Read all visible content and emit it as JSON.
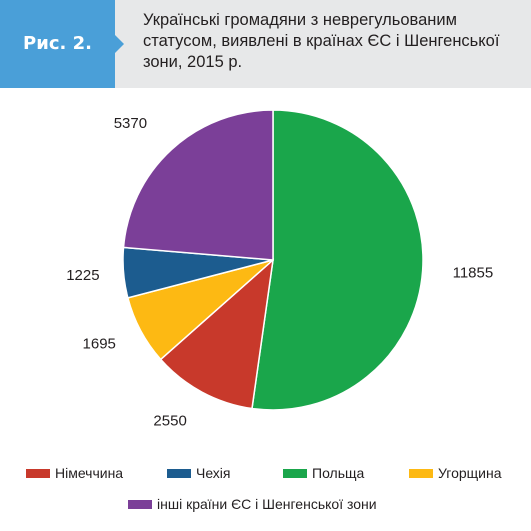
{
  "figure": {
    "label": "Рис. 2.",
    "title": "Українські громадяни з неврегульованим статусом, виявлені в країнах ЄС і Шенгенської зони, 2015 р."
  },
  "chart_data": {
    "type": "pie",
    "title": "Українські громадяни з неврегульованим статусом, виявлені в країнах ЄС і Шенгенської зони, 2015 р.",
    "slices": [
      {
        "name": "Польща",
        "value": 11855,
        "label": "11855",
        "color": "#1aa64b"
      },
      {
        "name": "Німеччина",
        "value": 2550,
        "label": "2550",
        "color": "#c8392b"
      },
      {
        "name": "Угорщина",
        "value": 1695,
        "label": "1695",
        "color": "#fdb913"
      },
      {
        "name": "Чехія",
        "value": 1225,
        "label": "1225",
        "color": "#1c5c8f"
      },
      {
        "name": "інші країни ЄС і Шенгенської зони",
        "value": 5370,
        "label": "5370",
        "color": "#7b3f98"
      }
    ],
    "legend_order": [
      "Німеччина",
      "Чехія",
      "Польща",
      "Угорщина",
      "інші країни ЄС і Шенгенської зони"
    ],
    "legend_position": "bottom"
  }
}
